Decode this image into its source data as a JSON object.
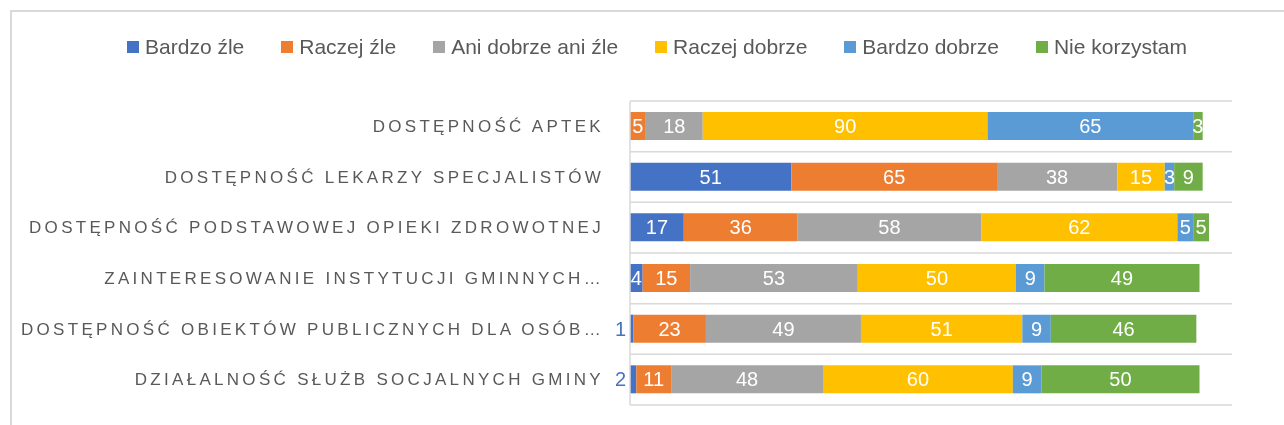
{
  "chart_data": {
    "type": "bar",
    "orientation": "horizontal",
    "stacked": true,
    "categories": [
      "DOSTĘPNOŚĆ APTEK",
      "DOSTĘPNOŚĆ LEKARZY SPECJALISTÓW",
      "DOSTĘPNOŚĆ PODSTAWOWEJ OPIEKI ZDROWOTNEJ",
      "ZAINTERESOWANIE INSTYTUCJI GMINNYCH…",
      "DOSTĘPNOŚĆ OBIEKTÓW PUBLICZNYCH DLA OSÓB…",
      "DZIAŁALNOŚĆ SŁUŻB SOCJALNYCH GMINY"
    ],
    "series": [
      {
        "name": "Bardzo źle",
        "color": "#4472c4",
        "values": [
          0,
          51,
          17,
          4,
          1,
          2
        ],
        "value_labels": [
          null,
          "51",
          "17",
          "4",
          "1",
          "2"
        ]
      },
      {
        "name": "Raczej źle",
        "color": "#ed7d31",
        "values": [
          5,
          65,
          36,
          15,
          23,
          11
        ],
        "value_labels": [
          "5",
          "65",
          "36",
          "15",
          "23",
          "11"
        ]
      },
      {
        "name": "Ani dobrze ani źle",
        "color": "#a5a5a5",
        "values": [
          18,
          38,
          58,
          53,
          49,
          48
        ],
        "value_labels": [
          "18",
          "38",
          "58",
          "53",
          "49",
          "48"
        ]
      },
      {
        "name": "Raczej dobrze",
        "color": "#ffc000",
        "values": [
          90,
          15,
          62,
          50,
          51,
          60
        ],
        "value_labels": [
          "90",
          "15",
          "62",
          "50",
          "51",
          "60"
        ]
      },
      {
        "name": "Bardzo dobrze",
        "color": "#5b9bd5",
        "values": [
          65,
          3,
          5,
          9,
          9,
          9
        ],
        "value_labels": [
          "65",
          "3",
          "5",
          "9",
          "9",
          "9"
        ]
      },
      {
        "name": "Nie korzystam",
        "color": "#70ad47",
        "values": [
          3,
          9,
          5,
          49,
          46,
          50
        ],
        "value_labels": [
          "3",
          "9",
          "5",
          "49",
          "46",
          "50"
        ]
      }
    ],
    "legend": "top",
    "grid": "y",
    "tick_labels": "y"
  }
}
